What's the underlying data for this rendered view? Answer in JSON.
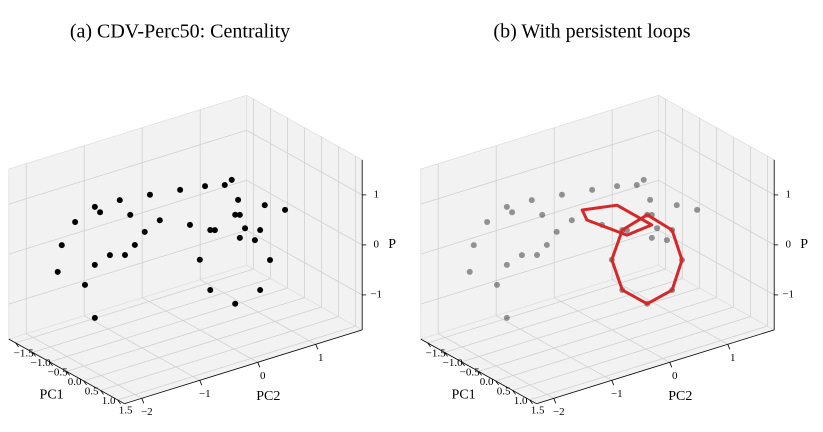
{
  "chart_data": [
    {
      "type": "scatter3d",
      "title": "(a) CDV-Perc50: Centrality",
      "xlabel": "PC1",
      "ylabel": "PC2",
      "zlabel": "P",
      "xlim": [
        -1.7,
        1.7
      ],
      "ylim": [
        -2.3,
        1.8
      ],
      "zlim": [
        -1.7,
        1.7
      ],
      "xticks": [
        {
          "value": -1.5,
          "label": "−1.5"
        },
        {
          "value": -1,
          "label": "−1.0"
        },
        {
          "value": -0.5,
          "label": "−0.5"
        },
        {
          "value": 0,
          "label": "0.0"
        },
        0.5,
        {
          "value": 1,
          "label": "1.0"
        },
        1.5
      ],
      "yticks": [
        {
          "value": -2,
          "label": "−2"
        },
        {
          "value": -1,
          "label": "−1"
        },
        0,
        1
      ],
      "zticks": [
        {
          "value": -1,
          "label": "−1"
        },
        0,
        1
      ],
      "grid": true,
      "series": [
        {
          "color": "#000000",
          "alpha": 1,
          "x": [
            -0.5,
            -0.5,
            -0.5,
            -0.5,
            -0.5,
            -0.5,
            -0.5,
            -0.5,
            -0.5,
            -0.5,
            -0.5,
            -0.5,
            -0.5,
            -0.5,
            -0.5,
            -0.5,
            -0.5,
            -0.5,
            -0.5,
            -0.5,
            -0.5,
            -0.5,
            -0.5,
            -0.5,
            -0.5,
            -0.5,
            -0.5,
            -0.5,
            -0.5,
            -0.5,
            -0.5,
            -0.5,
            -0.5,
            -0.5,
            -0.5,
            -0.5,
            -0.5
          ],
          "y": [
            -2.16,
            -2.09,
            -1.86,
            -1.52,
            -1.09,
            -0.57,
            -0.05,
            0.38,
            0.72,
            -1.43,
            -0.91,
            -0.4,
            0.12,
            0.55,
            0.98,
            1.24,
            -1.69,
            -1.52,
            -1.26,
            -1.0,
            -0.83,
            -0.66,
            0.84,
            0.95,
            0.98,
            1.07,
            0.29,
            0.47,
            0.9,
            1.33,
            1.5,
            1.33,
            0.9,
            0.47,
            1.41,
            1.76,
            -1.52
          ],
          "z": [
            0.05,
            0.56,
            0.94,
            1.12,
            1.1,
            1.02,
            0.93,
            0.85,
            0.75,
            0.98,
            0.74,
            0.45,
            0.17,
            -0.09,
            -0.4,
            -0.54,
            -0.38,
            -0.04,
            0.06,
            -0.03,
            0.11,
            0.31,
            0.81,
            0.37,
            0.06,
            -0.24,
            -0.59,
            -0.06,
            0.09,
            -0.37,
            -1.03,
            -1.57,
            -1.69,
            -1.26,
            0.1,
            -0.12,
            -1.1
          ]
        }
      ]
    },
    {
      "type": "scatter3d",
      "title": "(b) With persistent loops",
      "xlabel": "PC1",
      "ylabel": "PC2",
      "zlabel": "P",
      "xlim": [
        -1.7,
        1.7
      ],
      "ylim": [
        -2.3,
        1.8
      ],
      "zlim": [
        -1.7,
        1.7
      ],
      "xticks": [
        {
          "value": -1.5,
          "label": "−1.5"
        },
        {
          "value": -1,
          "label": "−1.0"
        },
        {
          "value": -0.5,
          "label": "−0.5"
        },
        {
          "value": 0,
          "label": "0.0"
        },
        0.5,
        {
          "value": 1,
          "label": "1.0"
        },
        1.5
      ],
      "yticks": [
        {
          "value": -2,
          "label": "−2"
        },
        {
          "value": -1,
          "label": "−1"
        },
        0,
        1
      ],
      "zticks": [
        {
          "value": -1,
          "label": "−1"
        },
        0,
        1
      ],
      "grid": true,
      "series": [
        {
          "color": "#000000",
          "alpha": 0.4,
          "x": [
            -0.5,
            -0.5,
            -0.5,
            -0.5,
            -0.5,
            -0.5,
            -0.5,
            -0.5,
            -0.5,
            -0.5,
            -0.5,
            -0.5,
            -0.5,
            -0.5,
            -0.5,
            -0.5,
            -0.5,
            -0.5,
            -0.5,
            -0.5,
            -0.5,
            -0.5,
            -0.5,
            -0.5,
            -0.5,
            -0.5,
            -0.5,
            -0.5,
            -0.5,
            -0.5,
            -0.5,
            -0.5,
            -0.5,
            -0.5,
            -0.5,
            -0.5,
            -0.5
          ],
          "y": [
            -2.16,
            -2.09,
            -1.86,
            -1.52,
            -1.09,
            -0.57,
            -0.05,
            0.38,
            0.72,
            -1.43,
            -0.91,
            -0.4,
            0.12,
            0.55,
            0.98,
            1.24,
            -1.69,
            -1.52,
            -1.26,
            -1.0,
            -0.83,
            -0.66,
            0.84,
            0.95,
            0.98,
            1.07,
            0.29,
            0.47,
            0.9,
            1.33,
            1.5,
            1.33,
            0.9,
            0.47,
            1.41,
            1.76,
            -1.52
          ],
          "z": [
            0.05,
            0.56,
            0.94,
            1.12,
            1.1,
            1.02,
            0.93,
            0.85,
            0.75,
            0.98,
            0.74,
            0.45,
            0.17,
            -0.09,
            -0.4,
            -0.54,
            -0.38,
            -0.04,
            0.06,
            -0.03,
            0.11,
            0.31,
            0.81,
            0.37,
            0.06,
            -0.24,
            -0.59,
            -0.06,
            0.09,
            -0.37,
            -1.03,
            -1.57,
            -1.69,
            -1.26,
            0.1,
            -0.12,
            -1.1
          ]
        }
      ],
      "loops": [
        {
          "color": "#d62728",
          "x": [
            -0.5,
            -0.5,
            -0.5,
            -0.5,
            -0.5,
            -0.5,
            -0.5,
            -0.5
          ],
          "y": [
            0.29,
            0.47,
            0.9,
            1.33,
            1.5,
            1.33,
            0.9,
            0.47
          ],
          "z": [
            -0.59,
            -0.06,
            0.09,
            -0.37,
            -1.03,
            -1.57,
            -1.69,
            -1.26
          ]
        },
        {
          "color": "#d62728",
          "x": [
            -0.5,
            -0.5,
            -0.5,
            -0.5,
            -0.5
          ],
          "y": [
            -0.22,
            0.38,
            0.98,
            0.55,
            -0.14
          ],
          "z": [
            0.59,
            0.47,
            -0.14,
            -0.19,
            0.36
          ]
        }
      ]
    }
  ]
}
